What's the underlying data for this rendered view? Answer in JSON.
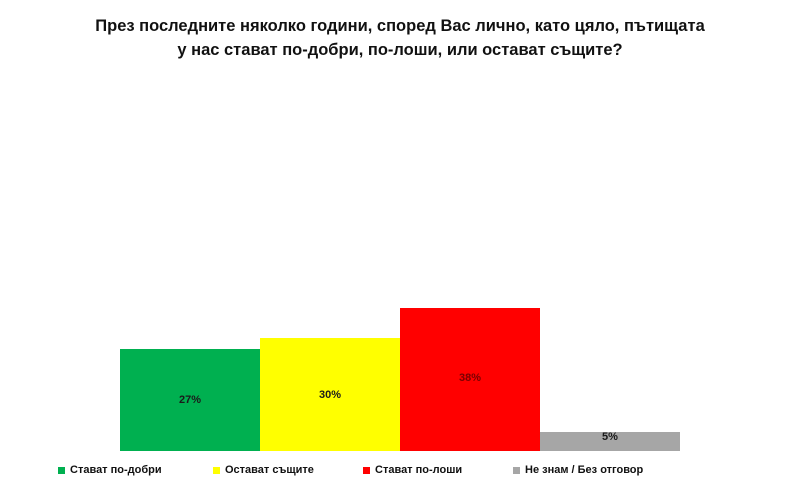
{
  "chart_data": {
    "type": "bar",
    "title": "През последните няколко години, според Вас лично, като цяло, пътищата у нас стават по-добри, по-лоши, или остават същите?",
    "title_lines": [
      "През последните няколко години, според Вас лично, като цяло, пътищата",
      "у нас стават по-добри, по-лоши, или остават същите?"
    ],
    "categories": [
      "Стават по-добри",
      "Остават същите",
      "Стават по-лоши",
      "Не знам / Без отговор"
    ],
    "values": [
      27,
      30,
      38,
      5
    ],
    "value_labels": [
      "27%",
      "30%",
      "38%",
      "5%"
    ],
    "colors": [
      "#00B050",
      "#FFFF00",
      "#FF0000",
      "#A6A6A6"
    ],
    "xlabel": "",
    "ylabel": "",
    "ylim": [
      0,
      100
    ],
    "grid": false,
    "axes_visible": false,
    "legend_position": "bottom",
    "unit": "%"
  }
}
